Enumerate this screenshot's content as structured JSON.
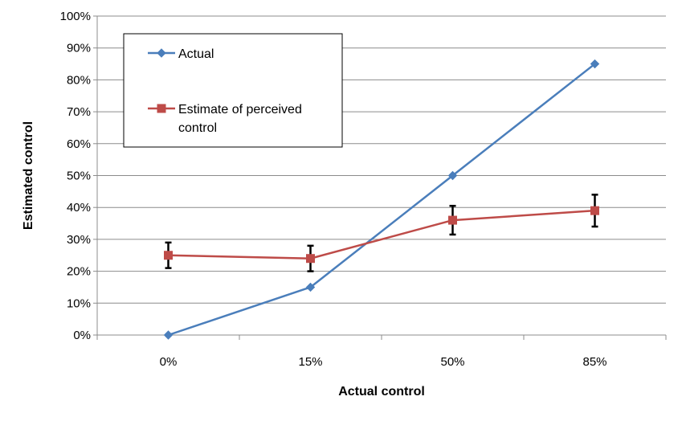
{
  "chart_data": {
    "type": "line",
    "title": "",
    "xlabel": "Actual control",
    "ylabel": "Estimated control",
    "categories": [
      "0%",
      "15%",
      "50%",
      "85%"
    ],
    "ylim": [
      0,
      100
    ],
    "yticks": [
      "0%",
      "10%",
      "20%",
      "30%",
      "40%",
      "50%",
      "60%",
      "70%",
      "80%",
      "90%",
      "100%"
    ],
    "grid": true,
    "legend": "top-left",
    "series": [
      {
        "name": "Actual",
        "values": [
          0,
          15,
          50,
          85
        ],
        "color": "#4a7ebb",
        "marker": "diamond"
      },
      {
        "name": "Estimate of perceived control",
        "values": [
          25,
          24,
          36,
          39
        ],
        "error": [
          4,
          4,
          4.5,
          5
        ],
        "color": "#be4b48",
        "marker": "square"
      }
    ]
  }
}
